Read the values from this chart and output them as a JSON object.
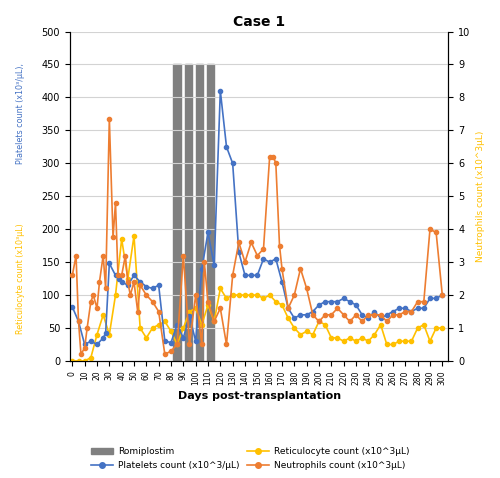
{
  "title": "Case 1",
  "xlabel": "Days post-transplantation",
  "ylabel_left_blue": "Platelets count (x10^3/μL), ",
  "ylabel_left_orange": "Reticulocyte count (x10^3μL)",
  "ylabel_right": "Neutrophils count (x10^3μL)",
  "ylim_left": [
    0,
    500
  ],
  "ylim_right": [
    0,
    10
  ],
  "yticks_left": [
    0,
    50,
    100,
    150,
    200,
    250,
    300,
    350,
    400,
    450,
    500
  ],
  "yticks_right": [
    0,
    1,
    2,
    3,
    4,
    5,
    6,
    7,
    8,
    9,
    10
  ],
  "xticks": [
    0,
    10,
    20,
    30,
    40,
    50,
    60,
    70,
    80,
    90,
    100,
    110,
    120,
    130,
    140,
    150,
    160,
    170,
    180,
    190,
    200,
    210,
    220,
    230,
    240,
    250,
    260,
    270,
    280,
    290,
    300
  ],
  "romiplostim_bars": [
    [
      82,
      88
    ],
    [
      91,
      97
    ],
    [
      100,
      106
    ],
    [
      109,
      115
    ]
  ],
  "platelets": {
    "x": [
      0,
      5,
      10,
      15,
      20,
      25,
      27,
      30,
      35,
      38,
      40,
      45,
      50,
      55,
      60,
      65,
      70,
      75,
      80,
      85,
      90,
      95,
      100,
      105,
      110,
      115,
      120,
      125,
      130,
      135,
      140,
      145,
      150,
      155,
      160,
      165,
      170,
      175,
      180,
      185,
      190,
      195,
      200,
      205,
      210,
      215,
      220,
      225,
      230,
      235,
      240,
      245,
      250,
      255,
      260,
      265,
      270,
      275,
      280,
      285,
      290,
      295,
      300
    ],
    "y": [
      82,
      60,
      25,
      30,
      25,
      35,
      42,
      148,
      130,
      125,
      120,
      115,
      130,
      120,
      113,
      110,
      115,
      30,
      28,
      55,
      35,
      68,
      30,
      140,
      195,
      145,
      410,
      325,
      300,
      165,
      130,
      130,
      130,
      155,
      150,
      155,
      120,
      80,
      65,
      70,
      70,
      75,
      85,
      90,
      90,
      90,
      95,
      90,
      85,
      70,
      65,
      75,
      65,
      70,
      75,
      80,
      80,
      75,
      80,
      80,
      95,
      95,
      100
    ],
    "color": "#4472C4",
    "marker": "o"
  },
  "reticulocyte": {
    "x": [
      0,
      5,
      10,
      15,
      20,
      25,
      30,
      35,
      40,
      45,
      50,
      55,
      60,
      65,
      70,
      75,
      80,
      85,
      90,
      95,
      100,
      105,
      110,
      115,
      120,
      125,
      130,
      135,
      140,
      145,
      150,
      155,
      160,
      165,
      170,
      175,
      180,
      185,
      190,
      195,
      200,
      205,
      210,
      215,
      220,
      225,
      230,
      235,
      240,
      245,
      250,
      255,
      260,
      265,
      270,
      275,
      280,
      285,
      290,
      295,
      300
    ],
    "y": [
      0,
      0,
      0,
      5,
      40,
      70,
      40,
      100,
      185,
      125,
      190,
      50,
      35,
      50,
      55,
      60,
      45,
      25,
      50,
      75,
      80,
      55,
      85,
      60,
      110,
      95,
      100,
      100,
      100,
      100,
      100,
      95,
      100,
      90,
      85,
      65,
      50,
      40,
      45,
      40,
      60,
      55,
      35,
      35,
      30,
      35,
      30,
      35,
      30,
      40,
      55,
      25,
      25,
      30,
      30,
      30,
      50,
      55,
      30,
      50,
      50
    ],
    "color": "#FFC000",
    "marker": "o"
  },
  "neutrophils": {
    "x": [
      0,
      3,
      5,
      7,
      10,
      12,
      15,
      17,
      20,
      22,
      25,
      27,
      30,
      33,
      35,
      37,
      40,
      43,
      45,
      47,
      50,
      53,
      55,
      60,
      65,
      70,
      75,
      80,
      85,
      90,
      95,
      100,
      105,
      107,
      110,
      115,
      120,
      125,
      130,
      135,
      140,
      145,
      150,
      155,
      160,
      163,
      165,
      168,
      170,
      175,
      180,
      185,
      190,
      195,
      200,
      205,
      210,
      215,
      220,
      225,
      230,
      235,
      240,
      245,
      250,
      255,
      260,
      265,
      270,
      275,
      280,
      285,
      290,
      295,
      300
    ],
    "y": [
      2.6,
      3.2,
      1.2,
      0.2,
      0.4,
      1.0,
      1.8,
      2.0,
      1.6,
      2.4,
      3.2,
      2.2,
      7.35,
      3.75,
      4.8,
      2.6,
      2.6,
      3.2,
      2.4,
      2.0,
      2.4,
      1.5,
      2.3,
      2.0,
      1.8,
      1.5,
      0.2,
      0.3,
      0.5,
      3.2,
      0.5,
      2.0,
      0.5,
      3.0,
      1.8,
      1.2,
      1.6,
      0.5,
      2.6,
      3.6,
      3.0,
      3.6,
      3.2,
      3.4,
      6.2,
      6.2,
      6.0,
      3.5,
      2.8,
      1.6,
      2.0,
      2.8,
      2.2,
      1.4,
      1.2,
      1.4,
      1.4,
      1.6,
      1.4,
      1.2,
      1.4,
      1.2,
      1.4,
      1.4,
      1.4,
      1.2,
      1.4,
      1.4,
      1.5,
      1.5,
      1.8,
      1.8,
      4.0,
      3.9,
      2.0
    ],
    "color": "#ED7D31",
    "marker": "o"
  },
  "romiplostim_color": "#808080",
  "background_color": "#ffffff",
  "grid_color": "#d3d3d3",
  "blue_color": "#4472C4",
  "orange_color": "#FFC000"
}
